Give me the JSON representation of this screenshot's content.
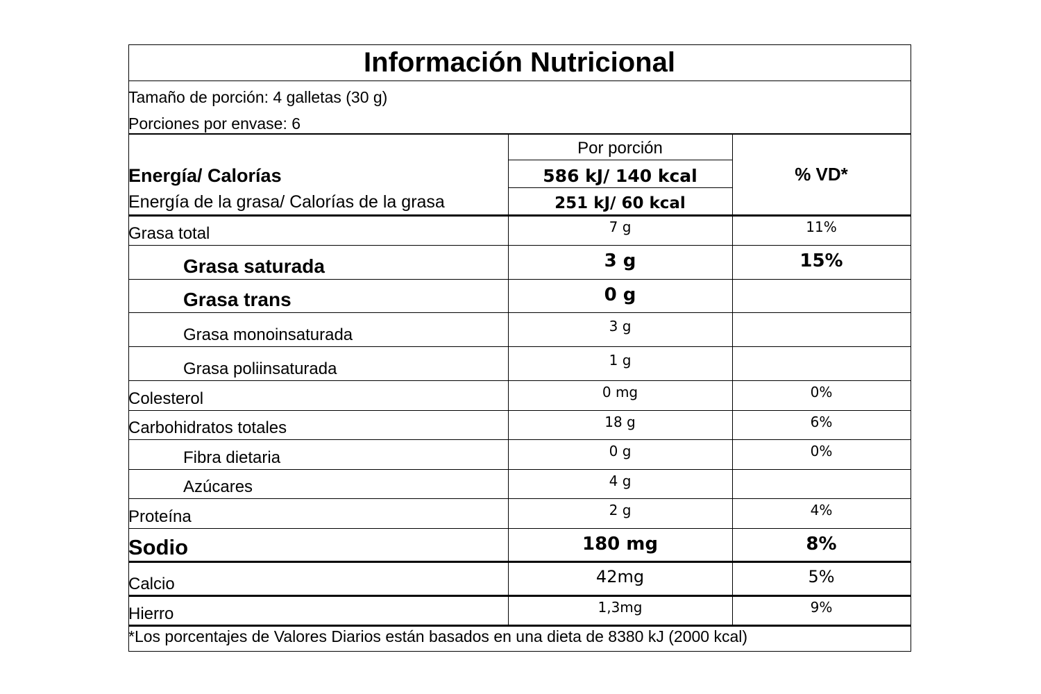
{
  "title": "Información Nutricional",
  "serving": [
    "Tamaño de porción: 4 galletas (30 g)",
    "Porciones por envase: 6"
  ],
  "header": {
    "per_serving": "Por porción",
    "dv": "% VD*",
    "energy_label": "Energía/ Calorías",
    "energy_value": "586 kJ/ 140 kcal",
    "fat_energy_label": "Energía de la grasa/ Calorías de la grasa",
    "fat_energy_value": "251 kJ/ 60 kcal"
  },
  "rows": [
    {
      "name": "Grasa total",
      "amount": "7 g",
      "dv": "11%"
    },
    {
      "name": "Grasa saturada",
      "amount": "3 g",
      "dv": "15%"
    },
    {
      "name": "Grasa trans",
      "amount": "0 g"
    },
    {
      "name": "Grasa monoinsaturada",
      "amount": "3 g"
    },
    {
      "name": "Grasa poliinsaturada",
      "amount": "1 g"
    },
    {
      "name": "Colesterol",
      "amount": "0 mg",
      "dv": "0%"
    },
    {
      "name": "Carbohidratos totales",
      "amount": "18 g",
      "dv": "6%"
    },
    {
      "name": "Fibra dietaria",
      "amount": "0 g",
      "dv": "0%"
    },
    {
      "name": "Azúcares",
      "amount": "4 g"
    },
    {
      "name": "Proteína",
      "amount": "2 g",
      "dv": "4%"
    },
    {
      "name": "Sodio",
      "amount": "180 mg",
      "dv": "8%"
    },
    {
      "name": "Calcio",
      "amount": "42mg",
      "dv": "5%"
    },
    {
      "name": "Hierro",
      "amount": "1,3mg",
      "dv": "9%"
    }
  ],
  "footnote": "*Los porcentajes de Valores Diarios están basados en una dieta de 8380 kJ (2000 kcal)"
}
